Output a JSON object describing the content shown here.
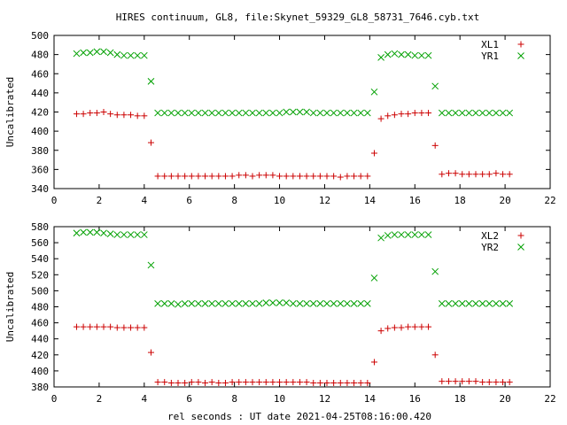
{
  "title": "HIRES continuum, GL8, file:Skynet_59329_GL8_58731_7646.cyb.txt",
  "xlabel": "rel seconds : UT date 2021-04-25T08:16:00.420",
  "chart_data": [
    {
      "type": "scatter",
      "ylabel": "Uncalibrated",
      "xlim": [
        0,
        22
      ],
      "ylim": [
        340,
        500
      ],
      "xticks": [
        0,
        2,
        4,
        6,
        8,
        10,
        12,
        14,
        16,
        18,
        20,
        22
      ],
      "yticks": [
        340,
        360,
        380,
        400,
        420,
        440,
        460,
        480,
        500
      ],
      "grid": false,
      "legend": "top-right",
      "series": [
        {
          "name": "XL1",
          "marker": "plus",
          "color": "#cc0000",
          "x": [
            1.0,
            1.3,
            1.6,
            1.9,
            2.2,
            2.5,
            2.8,
            3.1,
            3.4,
            3.7,
            4.0,
            4.3,
            4.6,
            4.9,
            5.2,
            5.5,
            5.8,
            6.1,
            6.4,
            6.7,
            7.0,
            7.3,
            7.6,
            7.9,
            8.2,
            8.5,
            8.8,
            9.1,
            9.4,
            9.7,
            10.0,
            10.3,
            10.6,
            10.9,
            11.2,
            11.5,
            11.8,
            12.1,
            12.4,
            12.7,
            13.0,
            13.3,
            13.6,
            13.9,
            14.2,
            14.5,
            14.8,
            15.1,
            15.4,
            15.7,
            16.0,
            16.3,
            16.6,
            16.9,
            17.2,
            17.5,
            17.8,
            18.1,
            18.4,
            18.7,
            19.0,
            19.3,
            19.6,
            19.9,
            20.2
          ],
          "y": [
            418,
            418,
            419,
            419,
            420,
            418,
            417,
            417,
            417,
            416,
            416,
            388,
            353,
            353,
            353,
            353,
            353,
            353,
            353,
            353,
            353,
            353,
            353,
            353,
            354,
            354,
            353,
            354,
            354,
            354,
            353,
            353,
            353,
            353,
            353,
            353,
            353,
            353,
            353,
            352,
            353,
            353,
            353,
            353,
            377,
            413,
            416,
            417,
            418,
            418,
            419,
            419,
            419,
            385,
            355,
            356,
            356,
            355,
            355,
            355,
            355,
            355,
            356,
            355,
            355
          ]
        },
        {
          "name": "YR1",
          "marker": "cross",
          "color": "#00a000",
          "x": [
            1.0,
            1.3,
            1.6,
            1.9,
            2.2,
            2.5,
            2.8,
            3.1,
            3.4,
            3.7,
            4.0,
            4.3,
            4.6,
            4.9,
            5.2,
            5.5,
            5.8,
            6.1,
            6.4,
            6.7,
            7.0,
            7.3,
            7.6,
            7.9,
            8.2,
            8.5,
            8.8,
            9.1,
            9.4,
            9.7,
            10.0,
            10.3,
            10.6,
            10.9,
            11.2,
            11.5,
            11.8,
            12.1,
            12.4,
            12.7,
            13.0,
            13.3,
            13.6,
            13.9,
            14.2,
            14.5,
            14.8,
            15.1,
            15.4,
            15.7,
            16.0,
            16.3,
            16.6,
            16.9,
            17.2,
            17.5,
            17.8,
            18.1,
            18.4,
            18.7,
            19.0,
            19.3,
            19.6,
            19.9,
            20.2
          ],
          "y": [
            481,
            482,
            482,
            483,
            483,
            482,
            480,
            479,
            479,
            479,
            479,
            452,
            419,
            419,
            419,
            419,
            419,
            419,
            419,
            419,
            419,
            419,
            419,
            419,
            419,
            419,
            419,
            419,
            419,
            419,
            419,
            420,
            420,
            420,
            420,
            419,
            419,
            419,
            419,
            419,
            419,
            419,
            419,
            419,
            441,
            477,
            480,
            481,
            480,
            480,
            479,
            479,
            479,
            447,
            419,
            419,
            419,
            419,
            419,
            419,
            419,
            419,
            419,
            419,
            419
          ]
        }
      ]
    },
    {
      "type": "scatter",
      "ylabel": "Uncalibrated",
      "xlim": [
        0,
        22
      ],
      "ylim": [
        380,
        580
      ],
      "xticks": [
        0,
        2,
        4,
        6,
        8,
        10,
        12,
        14,
        16,
        18,
        20,
        22
      ],
      "yticks": [
        380,
        400,
        420,
        440,
        460,
        480,
        500,
        520,
        540,
        560,
        580
      ],
      "grid": false,
      "legend": "top-right",
      "series": [
        {
          "name": "XL2",
          "marker": "plus",
          "color": "#cc0000",
          "x": [
            1.0,
            1.3,
            1.6,
            1.9,
            2.2,
            2.5,
            2.8,
            3.1,
            3.4,
            3.7,
            4.0,
            4.3,
            4.6,
            4.9,
            5.2,
            5.5,
            5.8,
            6.1,
            6.4,
            6.7,
            7.0,
            7.3,
            7.6,
            7.9,
            8.2,
            8.5,
            8.8,
            9.1,
            9.4,
            9.7,
            10.0,
            10.3,
            10.6,
            10.9,
            11.2,
            11.5,
            11.8,
            12.1,
            12.4,
            12.7,
            13.0,
            13.3,
            13.6,
            13.9,
            14.2,
            14.5,
            14.8,
            15.1,
            15.4,
            15.7,
            16.0,
            16.3,
            16.6,
            16.9,
            17.2,
            17.5,
            17.8,
            18.1,
            18.4,
            18.7,
            19.0,
            19.3,
            19.6,
            19.9,
            20.2
          ],
          "y": [
            455,
            455,
            455,
            455,
            455,
            455,
            454,
            454,
            454,
            454,
            454,
            423,
            386,
            386,
            385,
            385,
            385,
            386,
            386,
            385,
            386,
            385,
            385,
            386,
            386,
            386,
            386,
            386,
            386,
            386,
            386,
            386,
            386,
            386,
            386,
            385,
            385,
            385,
            385,
            385,
            385,
            385,
            385,
            385,
            411,
            450,
            453,
            454,
            454,
            455,
            455,
            455,
            455,
            420,
            387,
            387,
            387,
            387,
            387,
            387,
            386,
            386,
            386,
            386,
            386
          ]
        },
        {
          "name": "YR2",
          "marker": "cross",
          "color": "#00a000",
          "x": [
            1.0,
            1.3,
            1.6,
            1.9,
            2.2,
            2.5,
            2.8,
            3.1,
            3.4,
            3.7,
            4.0,
            4.3,
            4.6,
            4.9,
            5.2,
            5.5,
            5.8,
            6.1,
            6.4,
            6.7,
            7.0,
            7.3,
            7.6,
            7.9,
            8.2,
            8.5,
            8.8,
            9.1,
            9.4,
            9.7,
            10.0,
            10.3,
            10.6,
            10.9,
            11.2,
            11.5,
            11.8,
            12.1,
            12.4,
            12.7,
            13.0,
            13.3,
            13.6,
            13.9,
            14.2,
            14.5,
            14.8,
            15.1,
            15.4,
            15.7,
            16.0,
            16.3,
            16.6,
            16.9,
            17.2,
            17.5,
            17.8,
            18.1,
            18.4,
            18.7,
            19.0,
            19.3,
            19.6,
            19.9,
            20.2
          ],
          "y": [
            572,
            573,
            573,
            573,
            572,
            571,
            570,
            570,
            570,
            570,
            570,
            532,
            484,
            484,
            484,
            483,
            484,
            484,
            484,
            484,
            484,
            484,
            484,
            484,
            484,
            484,
            484,
            484,
            485,
            485,
            485,
            485,
            484,
            484,
            484,
            484,
            484,
            484,
            484,
            484,
            484,
            484,
            484,
            484,
            516,
            566,
            569,
            570,
            570,
            570,
            570,
            570,
            570,
            524,
            484,
            484,
            484,
            484,
            484,
            484,
            484,
            484,
            484,
            484,
            484
          ]
        }
      ]
    }
  ]
}
